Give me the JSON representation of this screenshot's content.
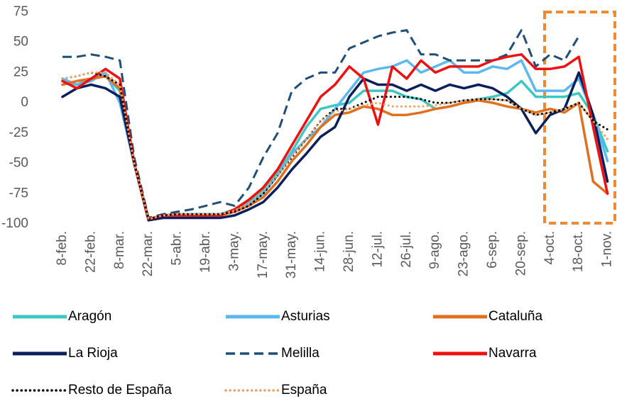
{
  "chart_data": {
    "type": "line",
    "categories": [
      "8-feb.",
      null,
      "22-feb.",
      null,
      "8-mar.",
      null,
      "22-mar.",
      null,
      "5-abr.",
      null,
      "19-abr.",
      null,
      "3-may.",
      null,
      "17-may.",
      null,
      "31-may.",
      null,
      "14-jun.",
      null,
      "28-jun.",
      null,
      "12-jul.",
      null,
      "26-jul.",
      null,
      "9-ago.",
      null,
      "23-ago.",
      null,
      "6-sep.",
      null,
      "20-sep.",
      null,
      "4-oct.",
      null,
      "18-oct.",
      null,
      "1-nov."
    ],
    "series": [
      {
        "name": "Aragón",
        "color": "#3cc8c0",
        "dash": "solid",
        "values": [
          18,
          15,
          20,
          22,
          10,
          -50,
          -96,
          -93,
          -92,
          -92,
          -92,
          -92,
          -88,
          -82,
          -72,
          -58,
          -40,
          -20,
          -5,
          -2,
          0,
          10,
          10,
          10,
          5,
          3,
          -5,
          -3,
          0,
          3,
          5,
          8,
          18,
          5,
          5,
          5,
          8,
          -10,
          -40
        ]
      },
      {
        "name": "Asturias",
        "color": "#5bb8f0",
        "dash": "solid",
        "values": [
          20,
          15,
          18,
          25,
          0,
          -50,
          -96,
          -93,
          -92,
          -93,
          -93,
          -92,
          -90,
          -83,
          -75,
          -60,
          -42,
          -30,
          -20,
          -5,
          10,
          25,
          28,
          30,
          35,
          25,
          30,
          35,
          25,
          25,
          30,
          28,
          35,
          10,
          10,
          10,
          20,
          -10,
          -48
        ]
      },
      {
        "name": "Cataluña",
        "color": "#e07020",
        "dash": "solid",
        "values": [
          15,
          18,
          20,
          22,
          12,
          -50,
          -97,
          -93,
          -92,
          -93,
          -93,
          -93,
          -90,
          -85,
          -78,
          -65,
          -48,
          -35,
          -20,
          -10,
          -8,
          -3,
          -5,
          -10,
          -10,
          -8,
          -5,
          -3,
          0,
          2,
          0,
          -3,
          -5,
          -8,
          -5,
          -8,
          0,
          -65,
          -75
        ]
      },
      {
        "name": "La Rioja",
        "color": "#0a1f5c",
        "dash": "solid",
        "values": [
          5,
          12,
          15,
          12,
          5,
          -50,
          -97,
          -95,
          -95,
          -95,
          -95,
          -95,
          -93,
          -88,
          -82,
          -70,
          -55,
          -42,
          -28,
          -20,
          5,
          20,
          15,
          15,
          10,
          15,
          10,
          15,
          12,
          15,
          12,
          5,
          -5,
          -25,
          -10,
          -5,
          25,
          -10,
          -65
        ]
      },
      {
        "name": "Melilla",
        "color": "#1f4e79",
        "dash": "dashed",
        "values": [
          38,
          38,
          40,
          38,
          35,
          -45,
          -95,
          -92,
          -90,
          -88,
          -85,
          -82,
          -85,
          -70,
          -45,
          -25,
          10,
          20,
          25,
          25,
          45,
          50,
          55,
          58,
          60,
          40,
          40,
          35,
          35,
          35,
          35,
          40,
          60,
          30,
          40,
          35,
          55,
          null,
          null
        ]
      },
      {
        "name": "Navarra",
        "color": "#ee1111",
        "dash": "solid",
        "values": [
          18,
          12,
          20,
          28,
          20,
          -50,
          -96,
          -93,
          -93,
          -93,
          -93,
          -93,
          -88,
          -80,
          -70,
          -55,
          -35,
          -15,
          5,
          15,
          30,
          20,
          -18,
          30,
          20,
          35,
          25,
          30,
          30,
          30,
          35,
          38,
          40,
          28,
          28,
          30,
          38,
          -20,
          -75
        ]
      },
      {
        "name": "Resto de España",
        "color": "#000000",
        "dash": "dotted",
        "values": [
          20,
          22,
          25,
          22,
          15,
          -50,
          -96,
          -93,
          -92,
          -92,
          -92,
          -92,
          -90,
          -85,
          -75,
          -60,
          -45,
          -30,
          -15,
          -5,
          -5,
          0,
          5,
          5,
          5,
          3,
          0,
          0,
          2,
          3,
          3,
          2,
          -5,
          -10,
          -8,
          -5,
          0,
          -15,
          -22
        ]
      },
      {
        "name": "España",
        "color": "#f0a060",
        "dash": "dotted",
        "values": [
          20,
          22,
          25,
          25,
          15,
          -50,
          -96,
          -93,
          -92,
          -92,
          -92,
          -92,
          -89,
          -83,
          -73,
          -60,
          -44,
          -30,
          -15,
          -7,
          -5,
          -2,
          0,
          -3,
          -3,
          -3,
          -2,
          0,
          2,
          3,
          3,
          2,
          -5,
          -10,
          -8,
          -5,
          0,
          -15,
          -30
        ]
      }
    ],
    "ylim": [
      -100,
      75
    ],
    "yticks": [
      -100,
      -75,
      -50,
      -25,
      0,
      25,
      50,
      75
    ],
    "grid": false
  }
}
